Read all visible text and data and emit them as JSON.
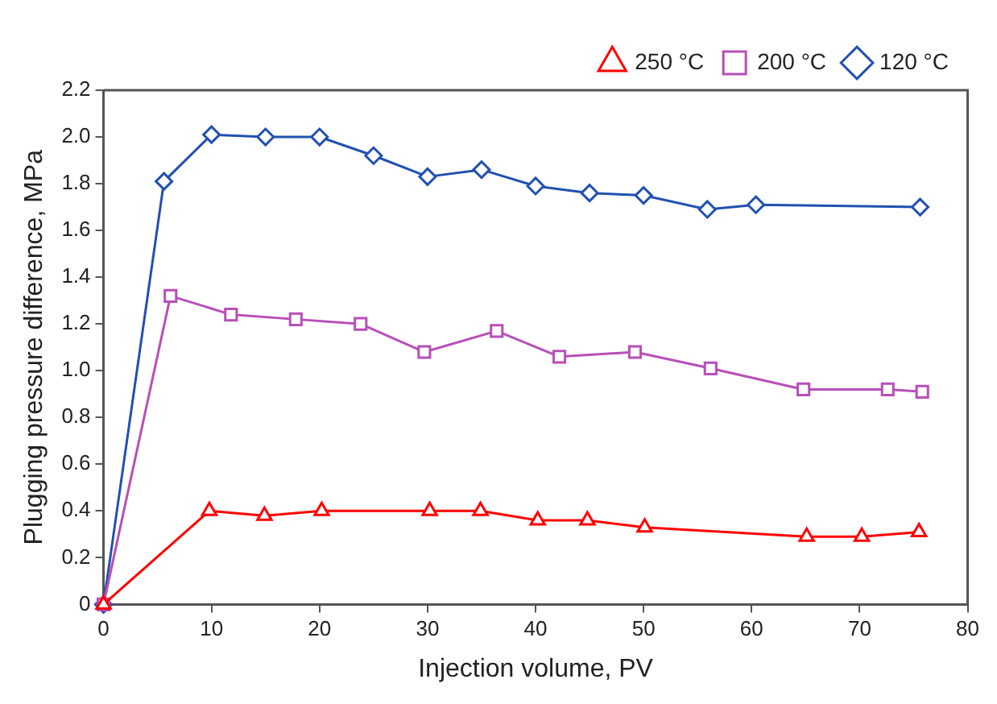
{
  "chart_data": {
    "type": "line",
    "xlabel": "Injection volume, PV",
    "ylabel": "Plugging pressure difference, MPa",
    "xlim": [
      0,
      80
    ],
    "xticks": [
      0,
      10,
      20,
      30,
      40,
      50,
      60,
      70,
      80
    ],
    "ylim": [
      0,
      2.2
    ],
    "yticks": [
      {
        "value": 0,
        "label": "0"
      },
      {
        "value": 0.2,
        "label": "0.2"
      },
      {
        "value": 0.4,
        "label": "0.4"
      },
      {
        "value": 0.6,
        "label": "0.6"
      },
      {
        "value": 0.8,
        "label": "0.8"
      },
      {
        "value": 1,
        "label": "1.0"
      },
      {
        "value": 1.2,
        "label": "1.2"
      },
      {
        "value": 1.4,
        "label": "1.4"
      },
      {
        "value": 1.6,
        "label": "1.6"
      },
      {
        "value": 1.8,
        "label": "1.8"
      },
      {
        "value": 2,
        "label": "2.0"
      },
      {
        "value": 2.2,
        "label": "2.2"
      }
    ],
    "grid": false,
    "legend": "top right",
    "line_style": "solid",
    "series": [
      {
        "name": "250 °C",
        "color": "#ff0000",
        "marker": "triangle",
        "x": [
          0,
          9.8,
          14.9,
          20.2,
          30.2,
          34.9,
          40.2,
          44.8,
          50.1,
          65.1,
          70.2,
          75.5
        ],
        "values": [
          0,
          0.4,
          0.38,
          0.4,
          0.4,
          0.4,
          0.36,
          0.36,
          0.33,
          0.29,
          0.29,
          0.31
        ]
      },
      {
        "name": "200 °C",
        "color": "#b84fb8",
        "marker": "square",
        "x": [
          0,
          6.2,
          11.8,
          17.8,
          23.8,
          29.7,
          36.4,
          42.2,
          49.2,
          56.2,
          64.8,
          72.6,
          75.8
        ],
        "values": [
          0,
          1.32,
          1.24,
          1.22,
          1.2,
          1.08,
          1.17,
          1.06,
          1.08,
          1.01,
          0.92,
          0.92,
          0.91
        ]
      },
      {
        "name": "120 °C",
        "color": "#2151b0",
        "marker": "diamond",
        "x": [
          0,
          5.6,
          10,
          15,
          20,
          25,
          30,
          35,
          40,
          45,
          50,
          55.9,
          60.4,
          75.6
        ],
        "values": [
          0,
          1.81,
          2.01,
          2,
          2,
          1.92,
          1.83,
          1.86,
          1.79,
          1.76,
          1.75,
          1.69,
          1.71,
          1.7
        ]
      }
    ]
  }
}
